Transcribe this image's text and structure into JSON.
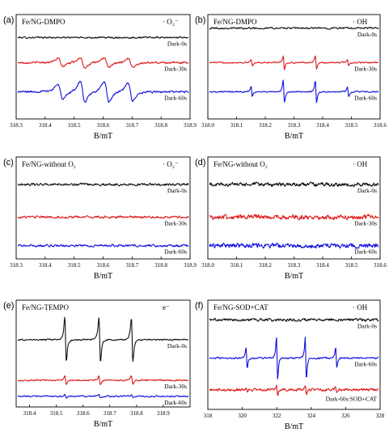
{
  "colors": {
    "black": "#111111",
    "red": "#e01b1b",
    "blue": "#1010e0"
  },
  "chart_data": [
    {
      "id": "a",
      "type": "line",
      "panel_label": "(a)",
      "title": "Fe/NG-DMPO",
      "legend": "· O₂⁻",
      "xlabel": "B/mT",
      "xlim": [
        318.3,
        318.9
      ],
      "xticks": [
        "318.3",
        "318.4",
        "318.5",
        "318.6",
        "318.7",
        "318.8",
        "318.9"
      ],
      "grid": false,
      "series": [
        {
          "name": "Dark-0s",
          "color": "black",
          "signal": "noise",
          "noise_amplitude": 0.1,
          "peak_amplitude": 0
        },
        {
          "name": "Dark-30s",
          "color": "red",
          "signal": "superoxide",
          "noise_amplitude": 0.12,
          "peak_amplitude": 1.0
        },
        {
          "name": "Dark-60s",
          "color": "blue",
          "signal": "superoxide",
          "noise_amplitude": 0.12,
          "peak_amplitude": 2.0
        }
      ]
    },
    {
      "id": "b",
      "type": "line",
      "panel_label": "(b)",
      "title": "Fe/NG-DMPO",
      "legend": "· OH",
      "xlabel": "B/mT",
      "xlim": [
        318.0,
        318.6
      ],
      "xticks": [
        "318.0",
        "318.1",
        "318.2",
        "318.3",
        "318.4",
        "318.5",
        "318.6"
      ],
      "grid": false,
      "series": [
        {
          "name": "Dark-0s",
          "color": "black",
          "signal": "noise",
          "noise_amplitude": 0.08,
          "peak_amplitude": 0
        },
        {
          "name": "Dark-30s",
          "color": "red",
          "signal": "hydroxyl",
          "noise_amplitude": 0.06,
          "peak_amplitude": 1.0
        },
        {
          "name": "Dark-60s",
          "color": "blue",
          "signal": "hydroxyl",
          "noise_amplitude": 0.06,
          "peak_amplitude": 1.65
        }
      ]
    },
    {
      "id": "c",
      "type": "line",
      "panel_label": "(c)",
      "title": "Fe/NG-without O₂",
      "legend": "· O₂⁻",
      "xlabel": "B/mT",
      "xlim": [
        318.3,
        318.9
      ],
      "xticks": [
        "318.3",
        "318.4",
        "318.5",
        "318.6",
        "318.7",
        "318.8",
        "318.9"
      ],
      "grid": false,
      "series": [
        {
          "name": "Dark-0s",
          "color": "black",
          "signal": "noise",
          "noise_amplitude": 0.35,
          "peak_amplitude": 0
        },
        {
          "name": "Dark-30s",
          "color": "red",
          "signal": "noise",
          "noise_amplitude": 0.35,
          "peak_amplitude": 0
        },
        {
          "name": "Dark-60s",
          "color": "blue",
          "signal": "noise",
          "noise_amplitude": 0.35,
          "peak_amplitude": 0
        }
      ]
    },
    {
      "id": "d",
      "type": "line",
      "panel_label": "(d)",
      "title": "Fe/NG-without O₂",
      "legend": "· OH",
      "xlabel": "B/mT",
      "xlim": [
        318.0,
        318.6
      ],
      "xticks": [
        "318.0",
        "318.1",
        "318.2",
        "318.3",
        "318.4",
        "318.5",
        "318.6"
      ],
      "grid": false,
      "series": [
        {
          "name": "Dark-0s",
          "color": "black",
          "signal": "noise",
          "noise_amplitude": 0.5,
          "peak_amplitude": 0
        },
        {
          "name": "Dark-30s",
          "color": "red",
          "signal": "noise",
          "noise_amplitude": 0.6,
          "peak_amplitude": 0
        },
        {
          "name": "Dark-60s",
          "color": "blue",
          "signal": "noise",
          "noise_amplitude": 0.6,
          "peak_amplitude": 0
        }
      ]
    },
    {
      "id": "e",
      "type": "line",
      "panel_label": "(e)",
      "title": "Fe/NG-TEMPO",
      "legend": "e⁻",
      "xlabel": "B/mT",
      "xlim": [
        318.35,
        319.0
      ],
      "xticks": [
        "318.4",
        "318.5",
        "318.6",
        "318.7",
        "318.8",
        "318.9"
      ],
      "grid": false,
      "series": [
        {
          "name": "Dark-0s",
          "color": "black",
          "signal": "tempo",
          "noise_amplitude": 0.02,
          "peak_amplitude": 1.0
        },
        {
          "name": "Dark-30s",
          "color": "red",
          "signal": "tempo",
          "noise_amplitude": 0.02,
          "peak_amplitude": 0.2
        },
        {
          "name": "Dark-60s",
          "color": "blue",
          "signal": "tempo",
          "noise_amplitude": 0.02,
          "peak_amplitude": 0.08
        }
      ]
    },
    {
      "id": "f",
      "type": "line",
      "panel_label": "(f)",
      "title": "Fe/NG-SOD+CAT",
      "legend": "· OH",
      "xlabel": "B/mT",
      "xlim": [
        318,
        328
      ],
      "xticks": [
        "318",
        "320",
        "322",
        "324",
        "326",
        "328"
      ],
      "grid": false,
      "series": [
        {
          "name": "Dark-0s",
          "color": "black",
          "signal": "noise",
          "noise_amplitude": 0.08,
          "peak_amplitude": 0
        },
        {
          "name": "Dark-60s",
          "color": "blue",
          "signal": "hydroxyl",
          "noise_amplitude": 0.05,
          "peak_amplitude": 1.9
        },
        {
          "name": "Dark-60s:SOD+CAT",
          "color": "red",
          "signal": "hydroxyl",
          "noise_amplitude": 0.08,
          "peak_amplitude": 0.45
        }
      ]
    }
  ]
}
